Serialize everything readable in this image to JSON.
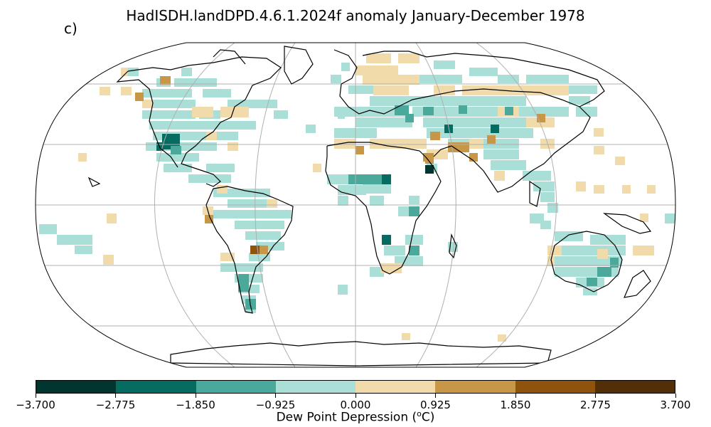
{
  "title": "HadISDH.landDPD.4.6.1.2024f anomaly January-December 1978",
  "panel_label": "c)",
  "colorbar": {
    "label_prefix": "Dew Point Depression (",
    "label_sup": "o",
    "label_suffix": "C)",
    "ticks": [
      "−3.700",
      "−2.775",
      "−1.850",
      "−0.925",
      "0.000",
      "0.925",
      "1.850",
      "2.775",
      "3.700"
    ],
    "colors": [
      "#01352f",
      "#066c62",
      "#4ba99b",
      "#aadfd8",
      "#f1dbaa",
      "#c79647",
      "#8e530c",
      "#532f07"
    ]
  },
  "map": {
    "projection": "robinson",
    "gridlines": true,
    "coastlines": true
  }
}
